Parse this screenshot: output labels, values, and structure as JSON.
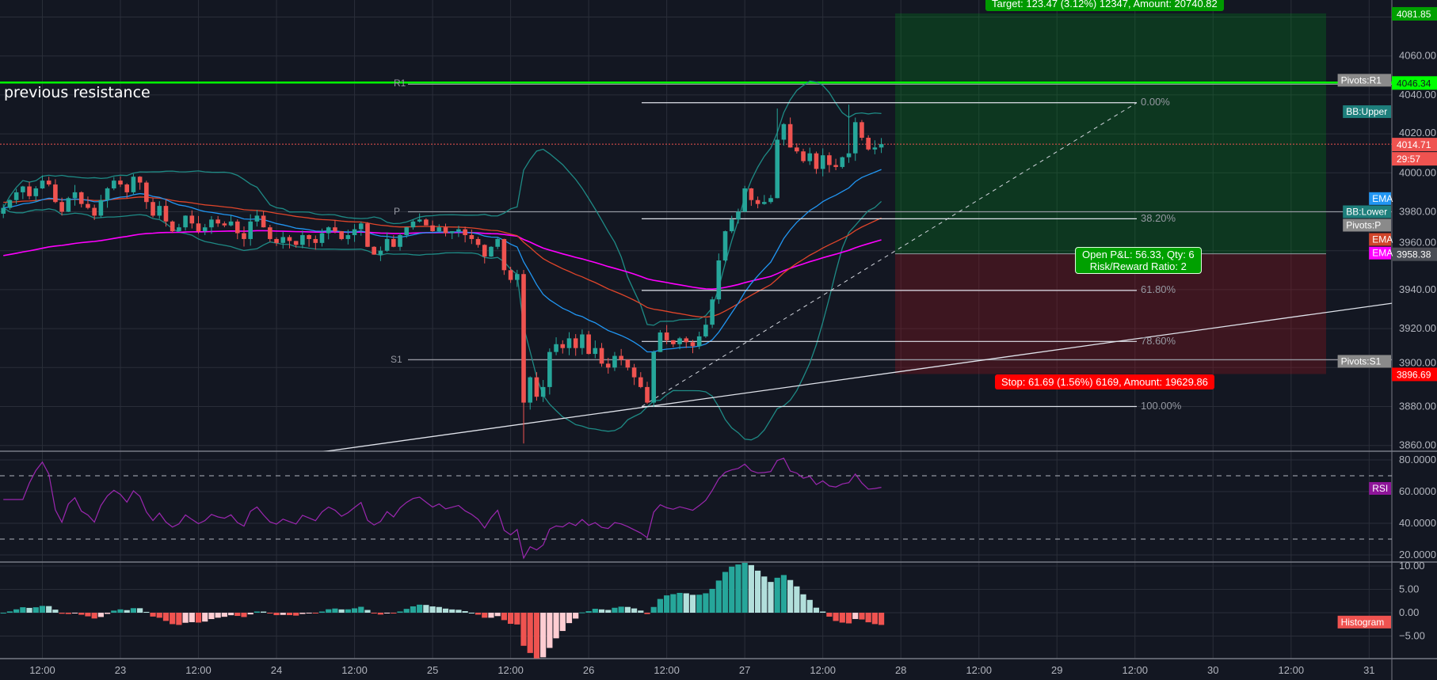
{
  "chart_data": {
    "type": "candlestick",
    "interval": "1 hour",
    "colors": {
      "background": "#131722",
      "grid": "#2a2e39",
      "up": "#26a69a",
      "down": "#ef5350",
      "ema_fast": "#2196f3",
      "ema_mid": "#e0452a",
      "ema_slow": "#ff00ff",
      "bb": "#1e8a85",
      "rsi": "#9c27b0",
      "resistance": "#00ff00"
    },
    "price_axis": {
      "ticks": [
        "4060.00",
        "4040.00",
        "4020.00",
        "4000.00",
        "3980.00",
        "3960.00",
        "3940.00",
        "3920.00",
        "3900.00",
        "3880.00",
        "3860.00"
      ],
      "range": [
        3857,
        4087
      ]
    },
    "time_axis": {
      "ticks": [
        "12:00",
        "23",
        "12:00",
        "24",
        "12:00",
        "25",
        "12:00",
        "26",
        "12:00",
        "27",
        "12:00",
        "28",
        "12:00",
        "29",
        "12:00",
        "30",
        "12:00",
        "31"
      ]
    },
    "first_candle": "22 06:00",
    "closes": [
      3982,
      3986,
      3990,
      3993,
      3988,
      3992,
      3996,
      3994,
      3985,
      3980,
      3987,
      3990,
      3984,
      3982,
      3978,
      3986,
      3992,
      3996,
      3994,
      3990,
      3998,
      3995,
      3985,
      3978,
      3983,
      3975,
      3970,
      3972,
      3978,
      3974,
      3970,
      3972,
      3976,
      3974,
      3973,
      3975,
      3969,
      3966,
      3975,
      3978,
      3972,
      3966,
      3964,
      3967,
      3965,
      3963,
      3968,
      3966,
      3964,
      3969,
      3972,
      3970,
      3966,
      3968,
      3971,
      3974,
      3962,
      3958,
      3960,
      3966,
      3962,
      3968,
      3972,
      3975,
      3976,
      3973,
      3970,
      3972,
      3969,
      3970,
      3971,
      3968,
      3966,
      3963,
      3957,
      3962,
      3966,
      3950,
      3945,
      3948,
      3882,
      3895,
      3885,
      3890,
      3908,
      3912,
      3910,
      3915,
      3910,
      3917,
      3907,
      3910,
      3902,
      3900,
      3906,
      3904,
      3900,
      3895,
      3890,
      3882,
      3908,
      3918,
      3914,
      3912,
      3915,
      3913,
      3911,
      3916,
      3922,
      3935,
      3955,
      3970,
      3976,
      3980,
      3992,
      3986,
      3984,
      3985,
      3987,
      4017,
      4025,
      4013,
      4011,
      4006,
      4010,
      4002,
      4009,
      4004,
      4003,
      4008,
      4010,
      4026,
      4018,
      4012,
      4013,
      4014.71
    ],
    "resistance": {
      "label": "previous resistance",
      "price": 4046.34,
      "tag": "4046.34"
    },
    "last_price": {
      "value": 4014.71,
      "tag": "4014.71",
      "countdown": "29:57"
    },
    "pivots": {
      "R1": {
        "label": "R1",
        "price": 4045.5,
        "tag": "Pivots:R1"
      },
      "P": {
        "label": "P",
        "price": 3980,
        "tag": "Pivots:P"
      },
      "S1": {
        "label": "S1",
        "price": 3904,
        "tag": "Pivots:S1"
      }
    },
    "indicator_tags": {
      "bb_upper": {
        "label": "BB:Upper",
        "value": 4031
      },
      "ema_fast": {
        "label": "EMA",
        "value": 3988
      },
      "bb_lower": {
        "label": "BB:Lower",
        "value": 3980
      },
      "ema_mid": {
        "label": "EMA",
        "value": 3967
      },
      "ema_slow": {
        "label": "EMA",
        "value": 3960
      }
    },
    "fib": {
      "start": "26 05:00",
      "end": "28 12:00",
      "from": 3880,
      "to": 4036,
      "levels": [
        {
          "label": "0.00%",
          "price": 4036
        },
        {
          "label": "38.20%",
          "price": 3976.4
        },
        {
          "label": "61.80%",
          "price": 3939.6
        },
        {
          "label": "78.60%",
          "price": 3913.4
        },
        {
          "label": "100.00%",
          "price": 3880
        }
      ]
    },
    "trendline": {
      "from": {
        "time": "24 12:00",
        "price": 3856.5
      },
      "to": {
        "time": "30 23:00",
        "price": 3933
      }
    },
    "long_position": {
      "entry": 3958.38,
      "entry_tag": "3958.38",
      "target": 4081.85,
      "target_tag": "4081.85",
      "stop": 3896.69,
      "stop_tag": "3896.69",
      "start": "27 22:00",
      "end": "30 14:00",
      "target_text": "Target: 123.47 (3.12%) 12347, Amount: 20740.82",
      "pnl_text": "Open P&L: 56.33, Qty: 6",
      "rr_text": "Risk/Reward Ratio: 2",
      "stop_text": "Stop: 61.69 (1.56%) 6169, Amount: 19629.86"
    },
    "rsi": {
      "tag": "RSI",
      "ticks": [
        "80.0000",
        "60.0000",
        "40.0000",
        "20.0000"
      ],
      "bands": [
        70,
        30
      ]
    },
    "macd": {
      "tag": "Histogram",
      "ticks": [
        "10.00",
        "5.00",
        "0.00",
        "−5.00"
      ]
    }
  }
}
